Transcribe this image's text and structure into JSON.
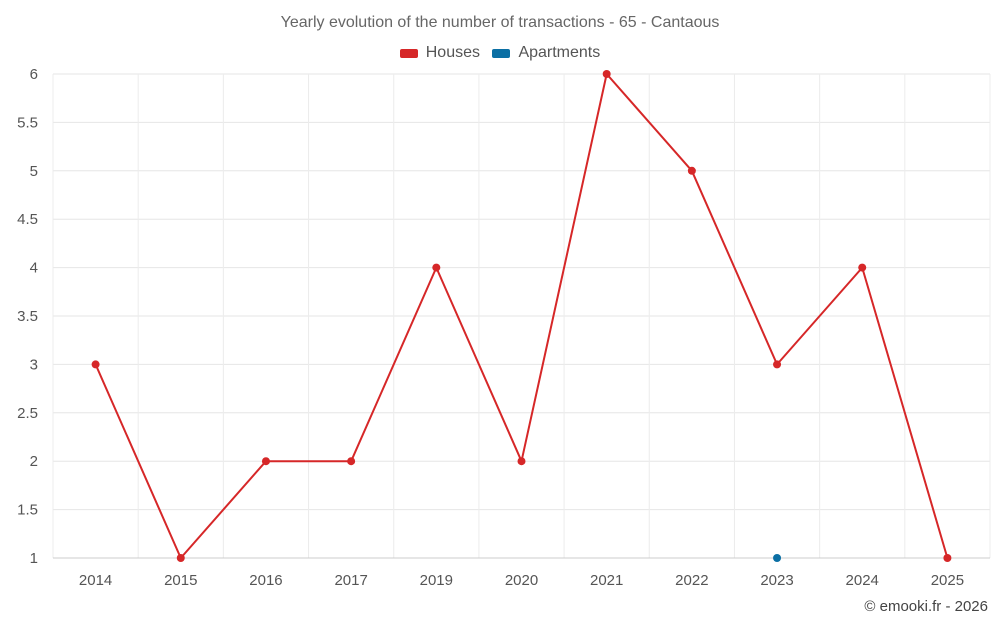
{
  "chart_data": {
    "type": "line",
    "title": "Yearly evolution of the number of transactions - 65 - Cantaous",
    "categories": [
      "2014",
      "2015",
      "2016",
      "2017",
      "2019",
      "2020",
      "2021",
      "2022",
      "2023",
      "2024",
      "2025"
    ],
    "series": [
      {
        "name": "Houses",
        "color": "#d62728",
        "values": [
          3,
          1,
          2,
          2,
          4,
          2,
          6,
          5,
          3,
          4,
          1
        ]
      },
      {
        "name": "Apartments",
        "color": "#0b6fa4",
        "values": [
          null,
          null,
          null,
          null,
          null,
          null,
          null,
          null,
          1,
          null,
          null
        ]
      }
    ],
    "ylim": [
      1,
      6
    ],
    "yticks": [
      "1",
      "1.5",
      "2",
      "2.5",
      "3",
      "3.5",
      "4",
      "4.5",
      "5",
      "5.5",
      "6"
    ],
    "grid": true,
    "legend_position": "top-center"
  },
  "credit": "© emooki.fr - 2026"
}
